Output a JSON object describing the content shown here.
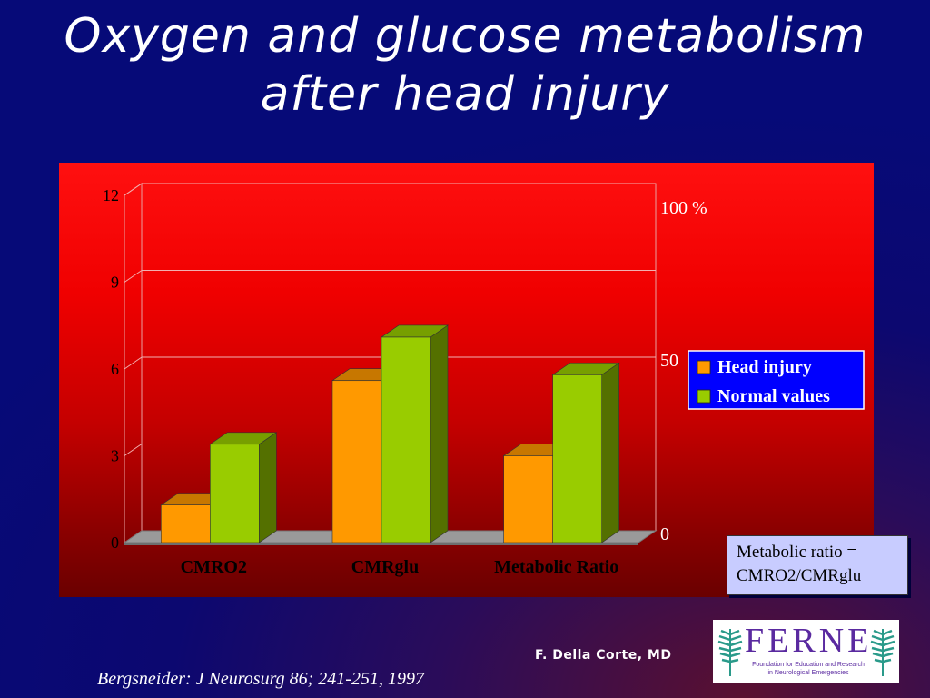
{
  "title": {
    "line1": "Oxygen and glucose metabolism",
    "line2": "after head injury"
  },
  "chart_data": {
    "type": "bar",
    "categories": [
      "CMRO2",
      "CMRglu",
      "Metabolic Ratio"
    ],
    "series": [
      {
        "name": "Head injury",
        "values": [
          1.3,
          5.6,
          3.0
        ],
        "color": "#ff9900"
      },
      {
        "name": "Normal values",
        "values": [
          3.4,
          7.1,
          5.8
        ],
        "color": "#99cc00"
      }
    ],
    "ylim": [
      0,
      12
    ],
    "y_ticks": [
      "0",
      "3",
      "6",
      "9",
      "12"
    ],
    "y_tick_values": [
      0,
      3,
      6,
      9,
      12
    ],
    "right_axis": {
      "labels": [
        "0",
        "50",
        "100 %"
      ],
      "values": [
        0,
        6,
        12
      ]
    },
    "legend_placement": "right",
    "grid": true,
    "style": "3d"
  },
  "note": {
    "line1": "Metabolic ratio =",
    "line2": "CMRO2/CMRglu"
  },
  "author": "F. Della Corte, MD",
  "reference": "Bergsneider: J Neurosurg 86; 241-251, 1997",
  "logo": {
    "word": "FERNE",
    "sub1": "Foundation for Education and Research",
    "sub2": "in Neurological Emergencies"
  }
}
